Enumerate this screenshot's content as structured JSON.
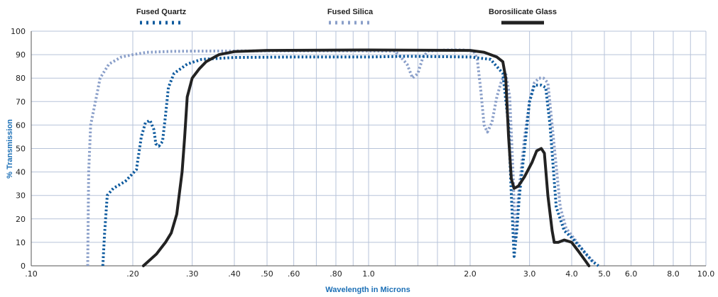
{
  "chart_data": {
    "type": "line",
    "xlabel": "Wavelength in Microns",
    "ylabel": "% Transmission",
    "x_scale": "log",
    "xlim": [
      0.1,
      10.0
    ],
    "ylim": [
      0,
      100
    ],
    "x_ticks": [
      0.1,
      0.2,
      0.3,
      0.4,
      0.5,
      0.6,
      0.8,
      1.0,
      2.0,
      3.0,
      4.0,
      5.0,
      6.0,
      8.0,
      10.0
    ],
    "x_tick_labels": [
      ".10",
      ".20",
      ".30",
      ".40",
      ".50",
      ".60",
      ".80",
      "1.0",
      "2.0",
      "3.0",
      "4.0",
      "5.0",
      "6.0",
      "8.0",
      "10.0"
    ],
    "x_minor_gridlines": [
      0.7,
      0.9,
      1.2,
      1.4,
      1.6,
      1.8,
      7.0,
      9.0
    ],
    "y_ticks": [
      0,
      10,
      20,
      30,
      40,
      50,
      60,
      70,
      80,
      90,
      100
    ],
    "y_tick_labels": [
      "0",
      "10",
      "20",
      "30",
      "40",
      "50",
      "60",
      "70",
      "80",
      "90",
      "100"
    ],
    "grid": true,
    "legend_position": "top",
    "colors": {
      "fused_quartz": "#0d5a9e",
      "fused_silica": "#8a9fc9",
      "borosilicate": "#222222",
      "grid": "#b7c3d9",
      "axis_label": "#1b6fb6"
    },
    "series": [
      {
        "name": "Fused Quartz",
        "style": "dotted-dark",
        "points": [
          [
            0.163,
            0
          ],
          [
            0.165,
            14
          ],
          [
            0.168,
            30
          ],
          [
            0.175,
            33
          ],
          [
            0.19,
            36
          ],
          [
            0.205,
            41
          ],
          [
            0.212,
            55
          ],
          [
            0.218,
            61
          ],
          [
            0.225,
            62
          ],
          [
            0.231,
            58
          ],
          [
            0.234,
            52
          ],
          [
            0.239,
            51
          ],
          [
            0.245,
            53
          ],
          [
            0.25,
            64
          ],
          [
            0.255,
            76
          ],
          [
            0.265,
            82
          ],
          [
            0.29,
            86
          ],
          [
            0.32,
            88
          ],
          [
            0.4,
            88.8
          ],
          [
            0.6,
            89
          ],
          [
            1.0,
            89
          ],
          [
            1.3,
            89.3
          ],
          [
            1.5,
            89.2
          ],
          [
            2.0,
            89
          ],
          [
            2.3,
            88
          ],
          [
            2.5,
            82
          ],
          [
            2.6,
            60
          ],
          [
            2.65,
            30
          ],
          [
            2.7,
            4
          ],
          [
            2.75,
            15
          ],
          [
            2.8,
            30
          ],
          [
            2.9,
            50
          ],
          [
            3.0,
            70
          ],
          [
            3.1,
            77
          ],
          [
            3.25,
            77
          ],
          [
            3.35,
            76
          ],
          [
            3.45,
            60
          ],
          [
            3.6,
            25
          ],
          [
            3.8,
            15
          ],
          [
            4.0,
            12
          ],
          [
            4.3,
            7
          ],
          [
            4.6,
            2
          ],
          [
            4.8,
            0
          ]
        ]
      },
      {
        "name": "Fused Silica",
        "style": "dotted-light",
        "points": [
          [
            0.147,
            0
          ],
          [
            0.148,
            40
          ],
          [
            0.15,
            60
          ],
          [
            0.155,
            70
          ],
          [
            0.16,
            80
          ],
          [
            0.17,
            86
          ],
          [
            0.185,
            89
          ],
          [
            0.2,
            90
          ],
          [
            0.22,
            91
          ],
          [
            0.26,
            91.4
          ],
          [
            0.3,
            91.5
          ],
          [
            0.5,
            91.6
          ],
          [
            1.0,
            91.6
          ],
          [
            1.2,
            91.5
          ],
          [
            1.3,
            86
          ],
          [
            1.35,
            80
          ],
          [
            1.4,
            82
          ],
          [
            1.45,
            89
          ],
          [
            1.5,
            91.5
          ],
          [
            1.7,
            92
          ],
          [
            1.9,
            92
          ],
          [
            2.05,
            91.5
          ],
          [
            2.1,
            88
          ],
          [
            2.15,
            75
          ],
          [
            2.2,
            60
          ],
          [
            2.25,
            57
          ],
          [
            2.32,
            61
          ],
          [
            2.4,
            72
          ],
          [
            2.48,
            79
          ],
          [
            2.55,
            82
          ],
          [
            2.62,
            72
          ],
          [
            2.68,
            40
          ],
          [
            2.72,
            12
          ],
          [
            2.78,
            30
          ],
          [
            2.9,
            55
          ],
          [
            3.0,
            70
          ],
          [
            3.1,
            78
          ],
          [
            3.2,
            80
          ],
          [
            3.3,
            80
          ],
          [
            3.4,
            78
          ],
          [
            3.5,
            60
          ],
          [
            3.7,
            25
          ],
          [
            3.85,
            16
          ],
          [
            4.1,
            11
          ],
          [
            4.4,
            5
          ],
          [
            4.7,
            1
          ]
        ]
      },
      {
        "name": "Borosilicate Glass",
        "style": "solid",
        "points": [
          [
            0.215,
            0
          ],
          [
            0.235,
            5
          ],
          [
            0.25,
            10
          ],
          [
            0.26,
            14
          ],
          [
            0.27,
            22
          ],
          [
            0.28,
            40
          ],
          [
            0.285,
            55
          ],
          [
            0.29,
            72
          ],
          [
            0.3,
            80
          ],
          [
            0.315,
            84
          ],
          [
            0.33,
            87
          ],
          [
            0.36,
            90
          ],
          [
            0.4,
            91.3
          ],
          [
            0.5,
            91.8
          ],
          [
            1.0,
            92
          ],
          [
            2.0,
            91.8
          ],
          [
            2.2,
            91
          ],
          [
            2.4,
            89
          ],
          [
            2.5,
            87
          ],
          [
            2.55,
            80
          ],
          [
            2.6,
            55
          ],
          [
            2.65,
            37
          ],
          [
            2.7,
            33
          ],
          [
            2.78,
            34
          ],
          [
            2.9,
            38
          ],
          [
            3.05,
            44
          ],
          [
            3.15,
            49
          ],
          [
            3.25,
            50
          ],
          [
            3.32,
            48
          ],
          [
            3.4,
            30
          ],
          [
            3.5,
            15
          ],
          [
            3.55,
            10
          ],
          [
            3.65,
            10
          ],
          [
            3.8,
            11
          ],
          [
            4.0,
            10
          ],
          [
            4.2,
            6
          ],
          [
            4.4,
            2
          ],
          [
            4.5,
            0
          ]
        ]
      }
    ]
  }
}
